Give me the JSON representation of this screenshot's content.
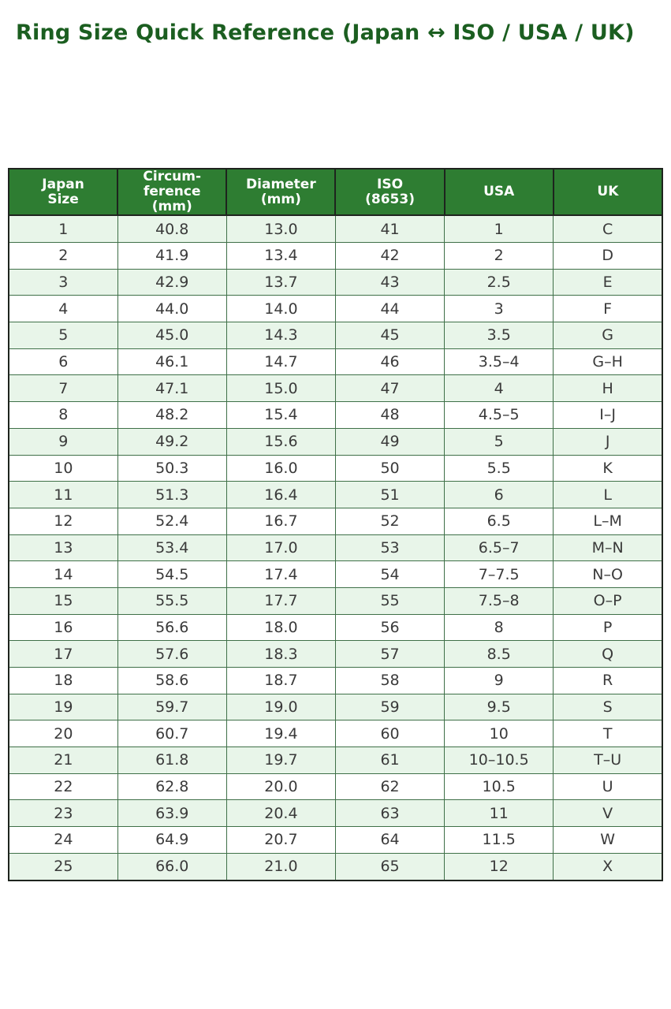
{
  "page": {
    "title": "Ring Size Quick Reference (Japan ↔ ISO / USA / UK)"
  },
  "colors": {
    "title_text": "#1b5e20",
    "header_bg": "#2e7d32",
    "header_text": "#ffffff",
    "row_alt_bg": "#e8f5e9",
    "row_bg": "#ffffff",
    "body_border": "#3f7048",
    "header_border": "#1e241e"
  },
  "table": {
    "columns": [
      "Japan\nSize",
      "Circum-\nference\n(mm)",
      "Diameter\n(mm)",
      "ISO\n(8653)",
      "USA",
      "UK"
    ],
    "rows": [
      [
        "1",
        "40.8",
        "13.0",
        "41",
        "1",
        "C"
      ],
      [
        "2",
        "41.9",
        "13.4",
        "42",
        "2",
        "D"
      ],
      [
        "3",
        "42.9",
        "13.7",
        "43",
        "2.5",
        "E"
      ],
      [
        "4",
        "44.0",
        "14.0",
        "44",
        "3",
        "F"
      ],
      [
        "5",
        "45.0",
        "14.3",
        "45",
        "3.5",
        "G"
      ],
      [
        "6",
        "46.1",
        "14.7",
        "46",
        "3.5–4",
        "G–H"
      ],
      [
        "7",
        "47.1",
        "15.0",
        "47",
        "4",
        "H"
      ],
      [
        "8",
        "48.2",
        "15.4",
        "48",
        "4.5–5",
        "I–J"
      ],
      [
        "9",
        "49.2",
        "15.6",
        "49",
        "5",
        "J"
      ],
      [
        "10",
        "50.3",
        "16.0",
        "50",
        "5.5",
        "K"
      ],
      [
        "11",
        "51.3",
        "16.4",
        "51",
        "6",
        "L"
      ],
      [
        "12",
        "52.4",
        "16.7",
        "52",
        "6.5",
        "L–M"
      ],
      [
        "13",
        "53.4",
        "17.0",
        "53",
        "6.5–7",
        "M–N"
      ],
      [
        "14",
        "54.5",
        "17.4",
        "54",
        "7–7.5",
        "N–O"
      ],
      [
        "15",
        "55.5",
        "17.7",
        "55",
        "7.5–8",
        "O–P"
      ],
      [
        "16",
        "56.6",
        "18.0",
        "56",
        "8",
        "P"
      ],
      [
        "17",
        "57.6",
        "18.3",
        "57",
        "8.5",
        "Q"
      ],
      [
        "18",
        "58.6",
        "18.7",
        "58",
        "9",
        "R"
      ],
      [
        "19",
        "59.7",
        "19.0",
        "59",
        "9.5",
        "S"
      ],
      [
        "20",
        "60.7",
        "19.4",
        "60",
        "10",
        "T"
      ],
      [
        "21",
        "61.8",
        "19.7",
        "61",
        "10–10.5",
        "T–U"
      ],
      [
        "22",
        "62.8",
        "20.0",
        "62",
        "10.5",
        "U"
      ],
      [
        "23",
        "63.9",
        "20.4",
        "63",
        "11",
        "V"
      ],
      [
        "24",
        "64.9",
        "20.7",
        "64",
        "11.5",
        "W"
      ],
      [
        "25",
        "66.0",
        "21.0",
        "65",
        "12",
        "X"
      ]
    ]
  }
}
